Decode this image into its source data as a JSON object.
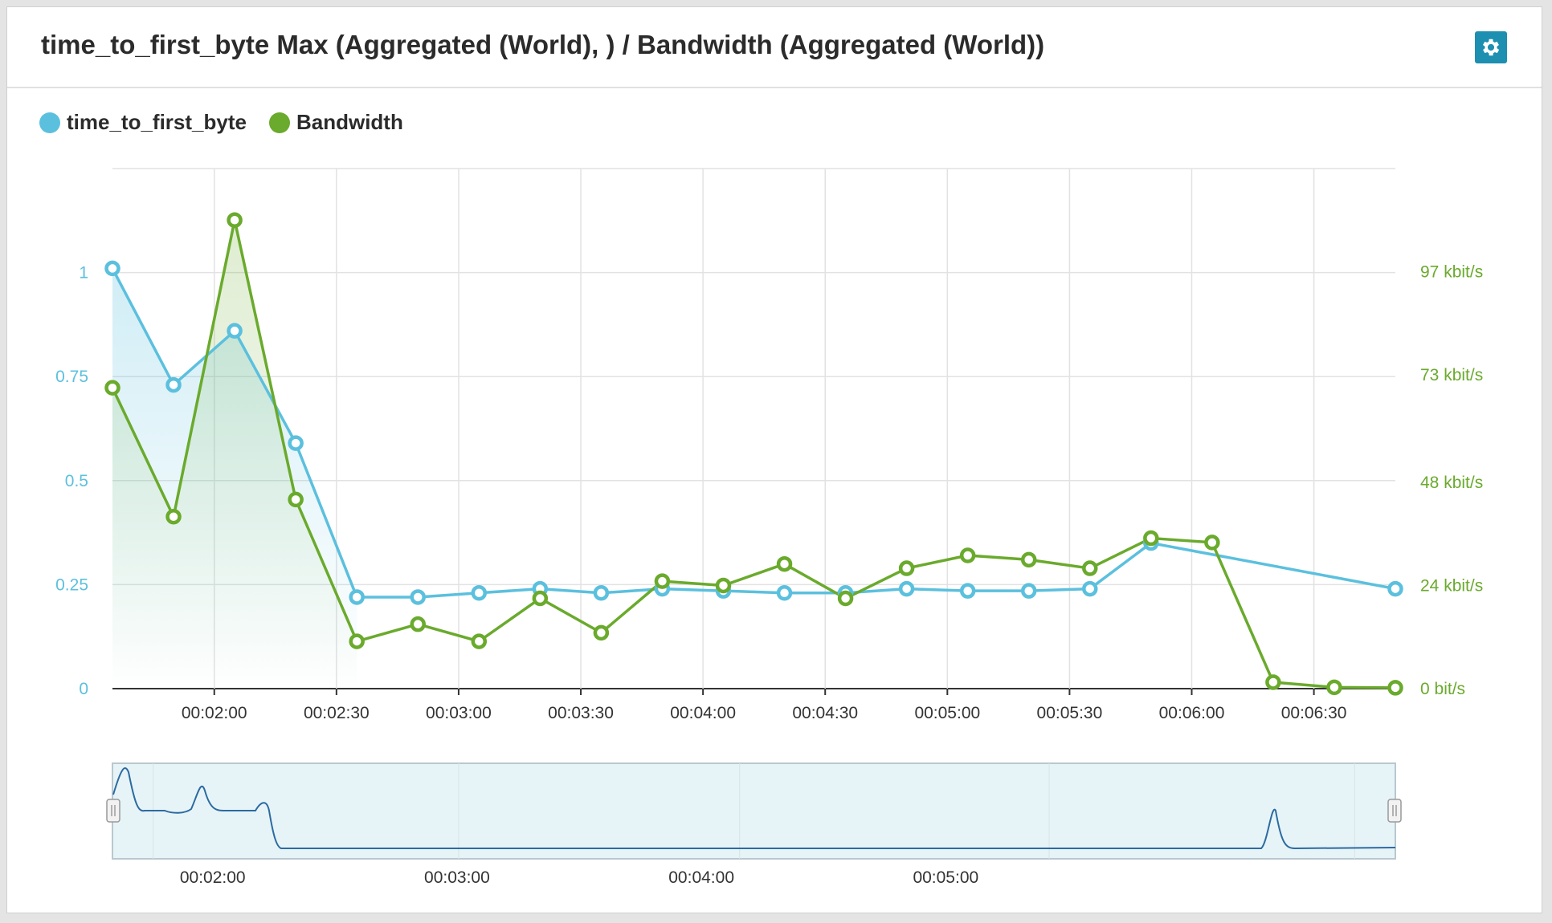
{
  "panel": {
    "title": "time_to_first_byte Max (Aggregated (World), ) / Bandwidth (Aggregated (World))",
    "settings_icon": "gear-icon"
  },
  "colors": {
    "series_ttfb": "#5bc0de",
    "series_bandwidth": "#6aaa2c",
    "navigator_line": "#2c6aa0",
    "navigator_fill": "#e6f4f8"
  },
  "chart_data": {
    "type": "line",
    "title": "time_to_first_byte Max (Aggregated (World), ) / Bandwidth (Aggregated (World))",
    "legend_position": "top-left",
    "grid": true,
    "x_ticks": [
      "00:02:00",
      "00:02:30",
      "00:03:00",
      "00:03:30",
      "00:04:00",
      "00:04:30",
      "00:05:00",
      "00:05:30",
      "00:06:00",
      "00:06:30"
    ],
    "y_left_ticks": [
      "0",
      "0.25",
      "0.5",
      "0.75",
      "1"
    ],
    "y_left_range": [
      0,
      1.25
    ],
    "y_right_ticks": [
      "0 bit/s",
      "24 kbit/s",
      "48 kbit/s",
      "73 kbit/s",
      "97 kbit/s"
    ],
    "y_right_unit": "kbit/s",
    "y_right_range": [
      0,
      121
    ],
    "x_seconds": [
      95,
      110,
      125,
      140,
      155,
      170,
      185,
      200,
      215,
      230,
      245,
      260,
      275,
      290,
      305,
      320,
      335,
      350,
      365,
      380,
      395,
      410
    ],
    "series": [
      {
        "name": "time_to_first_byte",
        "axis": "left",
        "x_seconds": [
          95,
          110,
          125,
          140,
          155,
          170,
          185,
          200,
          215,
          230,
          245,
          260,
          275,
          290,
          305,
          320,
          335,
          350,
          410
        ],
        "values": [
          1.01,
          0.73,
          0.86,
          0.59,
          0.22,
          0.22,
          0.23,
          0.24,
          0.23,
          0.24,
          0.235,
          0.23,
          0.23,
          0.24,
          0.235,
          0.235,
          0.24,
          0.35,
          0.24
        ]
      },
      {
        "name": "Bandwidth",
        "axis": "right",
        "x_seconds": [
          95,
          110,
          125,
          140,
          155,
          170,
          185,
          200,
          215,
          230,
          245,
          260,
          275,
          290,
          305,
          320,
          335,
          350,
          365,
          380,
          395,
          410
        ],
        "values": [
          70,
          40,
          109,
          44,
          11,
          15,
          11,
          21,
          13,
          25,
          24,
          29,
          21,
          28,
          31,
          30,
          28,
          35,
          34,
          1.5,
          0.3,
          0.2
        ]
      }
    ],
    "navigator": {
      "x_ticks": [
        "00:02:00",
        "00:03:00",
        "00:04:00",
        "00:05:00"
      ]
    }
  }
}
